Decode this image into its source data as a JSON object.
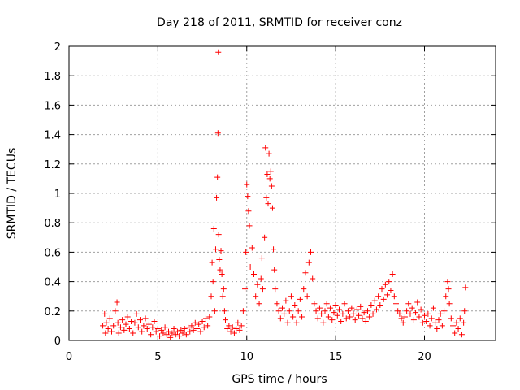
{
  "chart_data": {
    "type": "scatter",
    "title": "Day 218 of 2011, SRMTID for receiver conz",
    "xlabel": "GPS time / hours",
    "ylabel": "SRMTID / TECUs",
    "xlim": [
      0,
      24
    ],
    "ylim": [
      0,
      2
    ],
    "xticks": [
      0,
      5,
      10,
      15,
      20
    ],
    "xtick_labels": [
      "0",
      "5",
      "10",
      "15",
      "20"
    ],
    "yticks": [
      0,
      0.2,
      0.4,
      0.6,
      0.8,
      1,
      1.2,
      1.4,
      1.6,
      1.8,
      2
    ],
    "ytick_labels": [
      "0",
      "0.2",
      "0.4",
      "0.6",
      "0.8",
      "1",
      "1.2",
      "1.4",
      "1.6",
      "1.8",
      "2"
    ],
    "grid": true,
    "marker": "plus",
    "color": "#ff0000",
    "series": [
      {
        "name": "SRMTID",
        "points": [
          [
            1.9,
            0.1
          ],
          [
            2.0,
            0.18
          ],
          [
            2.05,
            0.05
          ],
          [
            2.1,
            0.12
          ],
          [
            2.2,
            0.08
          ],
          [
            2.3,
            0.15
          ],
          [
            2.4,
            0.06
          ],
          [
            2.5,
            0.1
          ],
          [
            2.6,
            0.2
          ],
          [
            2.7,
            0.26
          ],
          [
            2.75,
            0.12
          ],
          [
            2.8,
            0.05
          ],
          [
            2.9,
            0.09
          ],
          [
            3.0,
            0.14
          ],
          [
            3.1,
            0.07
          ],
          [
            3.2,
            0.11
          ],
          [
            3.3,
            0.16
          ],
          [
            3.4,
            0.08
          ],
          [
            3.5,
            0.13
          ],
          [
            3.6,
            0.05
          ],
          [
            3.7,
            0.12
          ],
          [
            3.8,
            0.18
          ],
          [
            3.9,
            0.09
          ],
          [
            4.0,
            0.14
          ],
          [
            4.1,
            0.06
          ],
          [
            4.2,
            0.1
          ],
          [
            4.3,
            0.15
          ],
          [
            4.4,
            0.08
          ],
          [
            4.5,
            0.11
          ],
          [
            4.6,
            0.04
          ],
          [
            4.7,
            0.09
          ],
          [
            4.8,
            0.13
          ],
          [
            4.9,
            0.06
          ],
          [
            5.0,
            0.08
          ],
          [
            5.1,
            0.03
          ],
          [
            5.2,
            0.07
          ],
          [
            5.3,
            0.05
          ],
          [
            5.4,
            0.09
          ],
          [
            5.5,
            0.04
          ],
          [
            5.6,
            0.06
          ],
          [
            5.7,
            0.02
          ],
          [
            5.8,
            0.05
          ],
          [
            5.9,
            0.08
          ],
          [
            6.0,
            0.04
          ],
          [
            6.1,
            0.06
          ],
          [
            6.2,
            0.03
          ],
          [
            6.3,
            0.07
          ],
          [
            6.4,
            0.05
          ],
          [
            6.5,
            0.08
          ],
          [
            6.6,
            0.04
          ],
          [
            6.7,
            0.09
          ],
          [
            6.8,
            0.06
          ],
          [
            6.9,
            0.1
          ],
          [
            7.0,
            0.07
          ],
          [
            7.1,
            0.12
          ],
          [
            7.2,
            0.08
          ],
          [
            7.3,
            0.11
          ],
          [
            7.4,
            0.06
          ],
          [
            7.5,
            0.13
          ],
          [
            7.6,
            0.09
          ],
          [
            7.7,
            0.15
          ],
          [
            7.8,
            0.1
          ],
          [
            7.9,
            0.16
          ],
          [
            8.0,
            0.3
          ],
          [
            8.05,
            0.53
          ],
          [
            8.1,
            0.4
          ],
          [
            8.15,
            0.76
          ],
          [
            8.2,
            0.2
          ],
          [
            8.25,
            0.62
          ],
          [
            8.3,
            0.97
          ],
          [
            8.35,
            1.11
          ],
          [
            8.38,
            1.41
          ],
          [
            8.4,
            1.96
          ],
          [
            8.42,
            0.72
          ],
          [
            8.45,
            0.55
          ],
          [
            8.5,
            0.48
          ],
          [
            8.55,
            0.61
          ],
          [
            8.6,
            0.45
          ],
          [
            8.65,
            0.3
          ],
          [
            8.7,
            0.35
          ],
          [
            8.75,
            0.2
          ],
          [
            8.8,
            0.14
          ],
          [
            8.9,
            0.08
          ],
          [
            9.0,
            0.1
          ],
          [
            9.1,
            0.06
          ],
          [
            9.2,
            0.09
          ],
          [
            9.3,
            0.05
          ],
          [
            9.4,
            0.08
          ],
          [
            9.5,
            0.12
          ],
          [
            9.6,
            0.07
          ],
          [
            9.7,
            0.1
          ],
          [
            9.8,
            0.2
          ],
          [
            9.9,
            0.35
          ],
          [
            9.95,
            0.6
          ],
          [
            10.0,
            1.06
          ],
          [
            10.05,
            0.98
          ],
          [
            10.1,
            0.88
          ],
          [
            10.15,
            0.78
          ],
          [
            10.2,
            0.5
          ],
          [
            10.3,
            0.63
          ],
          [
            10.4,
            0.45
          ],
          [
            10.5,
            0.3
          ],
          [
            10.6,
            0.38
          ],
          [
            10.7,
            0.25
          ],
          [
            10.8,
            0.42
          ],
          [
            10.85,
            0.56
          ],
          [
            10.9,
            0.35
          ],
          [
            11.0,
            0.7
          ],
          [
            11.05,
            1.31
          ],
          [
            11.1,
            0.97
          ],
          [
            11.15,
            1.13
          ],
          [
            11.2,
            0.93
          ],
          [
            11.25,
            1.27
          ],
          [
            11.3,
            1.1
          ],
          [
            11.35,
            1.15
          ],
          [
            11.4,
            1.05
          ],
          [
            11.45,
            0.9
          ],
          [
            11.5,
            0.62
          ],
          [
            11.55,
            0.48
          ],
          [
            11.6,
            0.35
          ],
          [
            11.7,
            0.25
          ],
          [
            11.8,
            0.2
          ],
          [
            11.9,
            0.15
          ],
          [
            12.0,
            0.22
          ],
          [
            12.1,
            0.18
          ],
          [
            12.2,
            0.27
          ],
          [
            12.3,
            0.12
          ],
          [
            12.4,
            0.2
          ],
          [
            12.5,
            0.3
          ],
          [
            12.6,
            0.16
          ],
          [
            12.7,
            0.24
          ],
          [
            12.8,
            0.12
          ],
          [
            12.9,
            0.2
          ],
          [
            13.0,
            0.28
          ],
          [
            13.1,
            0.16
          ],
          [
            13.2,
            0.35
          ],
          [
            13.3,
            0.46
          ],
          [
            13.4,
            0.3
          ],
          [
            13.5,
            0.53
          ],
          [
            13.6,
            0.6
          ],
          [
            13.7,
            0.42
          ],
          [
            13.8,
            0.25
          ],
          [
            13.9,
            0.2
          ],
          [
            14.0,
            0.15
          ],
          [
            14.1,
            0.22
          ],
          [
            14.2,
            0.18
          ],
          [
            14.3,
            0.12
          ],
          [
            14.4,
            0.2
          ],
          [
            14.5,
            0.25
          ],
          [
            14.6,
            0.16
          ],
          [
            14.7,
            0.22
          ],
          [
            14.8,
            0.14
          ],
          [
            14.9,
            0.19
          ],
          [
            15.0,
            0.24
          ],
          [
            15.1,
            0.17
          ],
          [
            15.2,
            0.21
          ],
          [
            15.3,
            0.13
          ],
          [
            15.4,
            0.18
          ],
          [
            15.5,
            0.25
          ],
          [
            15.6,
            0.15
          ],
          [
            15.7,
            0.2
          ],
          [
            15.8,
            0.16
          ],
          [
            15.9,
            0.22
          ],
          [
            16.0,
            0.18
          ],
          [
            16.1,
            0.14
          ],
          [
            16.2,
            0.21
          ],
          [
            16.3,
            0.17
          ],
          [
            16.4,
            0.23
          ],
          [
            16.5,
            0.15
          ],
          [
            16.6,
            0.19
          ],
          [
            16.7,
            0.13
          ],
          [
            16.8,
            0.2
          ],
          [
            16.9,
            0.16
          ],
          [
            17.0,
            0.24
          ],
          [
            17.1,
            0.18
          ],
          [
            17.2,
            0.27
          ],
          [
            17.3,
            0.21
          ],
          [
            17.4,
            0.3
          ],
          [
            17.5,
            0.24
          ],
          [
            17.6,
            0.35
          ],
          [
            17.7,
            0.28
          ],
          [
            17.8,
            0.38
          ],
          [
            17.9,
            0.31
          ],
          [
            18.0,
            0.4
          ],
          [
            18.1,
            0.34
          ],
          [
            18.2,
            0.45
          ],
          [
            18.3,
            0.3
          ],
          [
            18.4,
            0.25
          ],
          [
            18.5,
            0.2
          ],
          [
            18.6,
            0.18
          ],
          [
            18.7,
            0.15
          ],
          [
            18.8,
            0.12
          ],
          [
            18.9,
            0.16
          ],
          [
            19.0,
            0.2
          ],
          [
            19.1,
            0.25
          ],
          [
            19.2,
            0.18
          ],
          [
            19.3,
            0.22
          ],
          [
            19.4,
            0.14
          ],
          [
            19.5,
            0.19
          ],
          [
            19.6,
            0.26
          ],
          [
            19.7,
            0.16
          ],
          [
            19.8,
            0.21
          ],
          [
            19.9,
            0.12
          ],
          [
            20.0,
            0.17
          ],
          [
            20.1,
            0.13
          ],
          [
            20.2,
            0.18
          ],
          [
            20.3,
            0.1
          ],
          [
            20.4,
            0.15
          ],
          [
            20.5,
            0.22
          ],
          [
            20.6,
            0.12
          ],
          [
            20.7,
            0.08
          ],
          [
            20.8,
            0.14
          ],
          [
            20.9,
            0.18
          ],
          [
            21.0,
            0.1
          ],
          [
            21.1,
            0.2
          ],
          [
            21.2,
            0.3
          ],
          [
            21.3,
            0.4
          ],
          [
            21.35,
            0.35
          ],
          [
            21.4,
            0.25
          ],
          [
            21.5,
            0.15
          ],
          [
            21.6,
            0.1
          ],
          [
            21.7,
            0.05
          ],
          [
            21.8,
            0.12
          ],
          [
            21.9,
            0.08
          ],
          [
            22.0,
            0.15
          ],
          [
            22.1,
            0.04
          ],
          [
            22.2,
            0.12
          ],
          [
            22.25,
            0.2
          ],
          [
            22.3,
            0.36
          ]
        ]
      }
    ]
  }
}
